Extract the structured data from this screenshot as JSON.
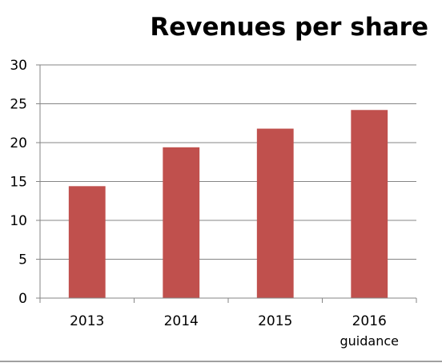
{
  "chart_data": {
    "type": "bar",
    "title": "Revenues per share",
    "categories": [
      "2013",
      "2014",
      "2015",
      "2016"
    ],
    "category_sublabels": [
      "",
      "",
      "",
      "guidance"
    ],
    "values": [
      14.4,
      19.4,
      21.8,
      24.2
    ],
    "ylim": [
      0,
      30
    ],
    "yticks": [
      0,
      5,
      10,
      15,
      20,
      25,
      30
    ],
    "grid": true,
    "bar_color": "#c0504d"
  }
}
